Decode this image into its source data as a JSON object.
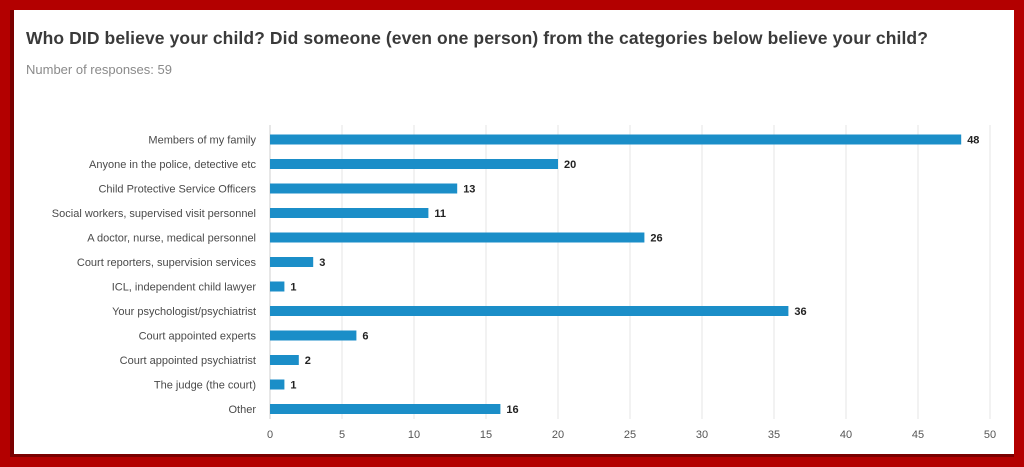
{
  "header": {
    "title": "Who DID believe your child?   Did someone (even one person) from the categories below believe your child?",
    "subtitle": "Number of responses: 59"
  },
  "colors": {
    "bar": "#1b8ec8",
    "grid": "#e6e6e6",
    "border": "#b30000",
    "frame": "#7a0000"
  },
  "chart_data": {
    "type": "bar",
    "orientation": "horizontal",
    "categories": [
      "Members of my family",
      "Anyone in the police, detective etc",
      "Child Protective Service Officers",
      "Social workers, supervised visit personnel",
      "A doctor, nurse, medical personnel",
      "Court reporters, supervision services",
      "ICL, independent child lawyer",
      "Your psychologist/psychiatrist",
      "Court appointed experts",
      "Court appointed psychiatrist",
      "The judge (the court)",
      "Other"
    ],
    "values": [
      48,
      20,
      13,
      11,
      26,
      3,
      1,
      36,
      6,
      2,
      1,
      16
    ],
    "xlim": [
      0,
      50
    ],
    "xticks": [
      0,
      5,
      10,
      15,
      20,
      25,
      30,
      35,
      40,
      45,
      50
    ],
    "grid": true,
    "data_labels": true,
    "legend": "none"
  }
}
